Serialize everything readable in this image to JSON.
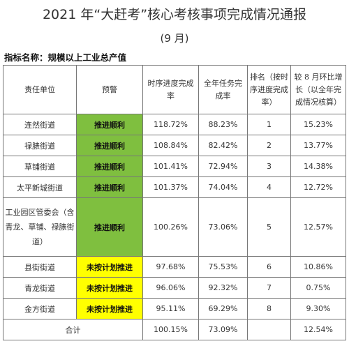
{
  "title": "2021 年“大赶考”核心考核事项完成情况通报",
  "subtitle": "(9 月)",
  "indicator": "指标名称：规模以上工业总产值",
  "table": {
    "headers": [
      "责任单位",
      "预警",
      "时序进度完成率",
      "全年任务完成率",
      "排名（按时序进度完成率）",
      "较 8 月环比增长（以全年完成情况核算）"
    ],
    "rows": [
      {
        "unit": "连然街道",
        "warning": "推进顺利",
        "level": "green",
        "time_rate": "118.72%",
        "year_rate": "88.23%",
        "rank": "1",
        "growth": "15.23%"
      },
      {
        "unit": "禄脿街道",
        "warning": "推进顺利",
        "level": "green",
        "time_rate": "108.84%",
        "year_rate": "82.42%",
        "rank": "2",
        "growth": "13.77%"
      },
      {
        "unit": "草铺街道",
        "warning": "推进顺利",
        "level": "green",
        "time_rate": "101.41%",
        "year_rate": "72.94%",
        "rank": "3",
        "growth": "14.38%"
      },
      {
        "unit": "太平新城街道",
        "warning": "推进顺利",
        "level": "green",
        "time_rate": "101.37%",
        "year_rate": "74.04%",
        "rank": "4",
        "growth": "12.72%"
      },
      {
        "unit": "工业园区管委会（含青龙、草铺、禄脿街道）",
        "warning": "推进顺利",
        "level": "green",
        "time_rate": "100.26%",
        "year_rate": "73.06%",
        "rank": "5",
        "growth": "12.57%"
      },
      {
        "unit": "县街街道",
        "warning": "未按计划推进",
        "level": "yellow",
        "time_rate": "97.68%",
        "year_rate": "75.53%",
        "rank": "6",
        "growth": "10.86%"
      },
      {
        "unit": "青龙街道",
        "warning": "未按计划推进",
        "level": "yellow",
        "time_rate": "96.06%",
        "year_rate": "92.32%",
        "rank": "7",
        "growth": "0.75%"
      },
      {
        "unit": "金方街道",
        "warning": "未按计划推进",
        "level": "yellow",
        "time_rate": "95.11%",
        "year_rate": "69.29%",
        "rank": "8",
        "growth": "9.30%"
      }
    ],
    "total": {
      "label": "合计",
      "time_rate": "100.15%",
      "year_rate": "73.09%",
      "growth": "12.54%"
    }
  },
  "colors": {
    "green": "#7fbf3f",
    "yellow": "#ffff00"
  }
}
